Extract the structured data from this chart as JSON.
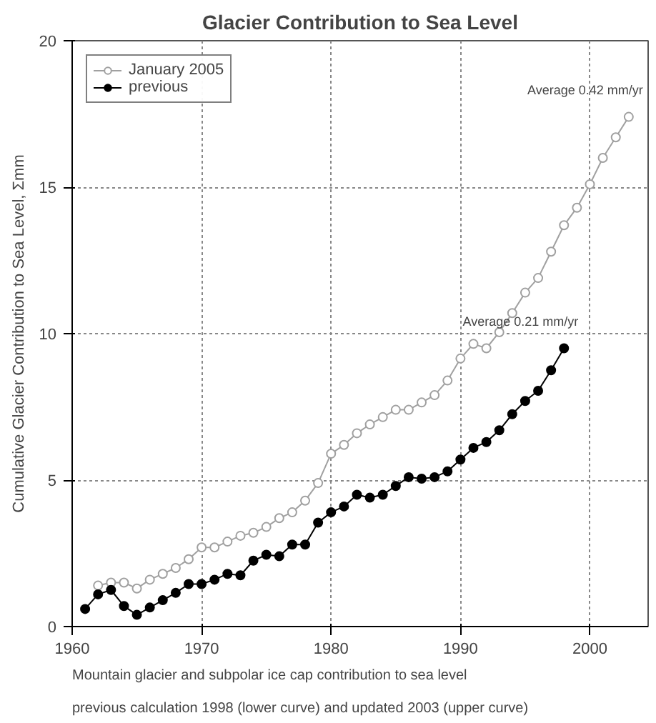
{
  "chart_data": {
    "type": "line",
    "title": "Glacier Contribution to Sea Level",
    "ylabel": "Cumulative Glacier Contribution to Sea Level, Σmm",
    "xlim": [
      1960,
      2004.5
    ],
    "ylim": [
      0,
      20
    ],
    "xticks": [
      1960,
      1970,
      1980,
      1990,
      2000
    ],
    "yticks": [
      0,
      5,
      10,
      15,
      20
    ],
    "grid": true,
    "legend": "top left",
    "line_style": "solid",
    "series": [
      {
        "name": "January 2005",
        "color": "#a0a0a0",
        "marker": "circle_open",
        "x": [
          1962,
          1963,
          1964,
          1965,
          1966,
          1967,
          1968,
          1969,
          1970,
          1971,
          1972,
          1973,
          1974,
          1975,
          1976,
          1977,
          1978,
          1979,
          1980,
          1981,
          1982,
          1983,
          1984,
          1985,
          1986,
          1987,
          1988,
          1989,
          1990,
          1991,
          1992,
          1993,
          1994,
          1995,
          1996,
          1997,
          1998,
          1999,
          2000,
          2001,
          2002,
          2003
        ],
        "values": [
          1.4,
          1.5,
          1.5,
          1.3,
          1.6,
          1.8,
          2.0,
          2.3,
          2.7,
          2.7,
          2.9,
          3.1,
          3.2,
          3.4,
          3.7,
          3.9,
          4.3,
          4.9,
          5.9,
          6.2,
          6.6,
          6.9,
          7.15,
          7.4,
          7.4,
          7.65,
          7.9,
          8.4,
          9.15,
          9.65,
          9.5,
          10.05,
          10.7,
          11.4,
          11.9,
          12.8,
          13.7,
          14.3,
          15.1,
          16.0,
          16.7,
          17.4
        ]
      },
      {
        "name": "previous",
        "color": "#000000",
        "marker": "circle",
        "x": [
          1961,
          1962,
          1963,
          1964,
          1965,
          1966,
          1967,
          1968,
          1969,
          1970,
          1971,
          1972,
          1973,
          1974,
          1975,
          1976,
          1977,
          1978,
          1979,
          1980,
          1981,
          1982,
          1983,
          1984,
          1985,
          1986,
          1987,
          1988,
          1989,
          1990,
          1991,
          1992,
          1993,
          1994,
          1995,
          1996,
          1997,
          1998
        ],
        "values": [
          0.6,
          1.1,
          1.25,
          0.7,
          0.4,
          0.65,
          0.9,
          1.15,
          1.45,
          1.45,
          1.6,
          1.8,
          1.75,
          2.25,
          2.45,
          2.4,
          2.8,
          2.8,
          3.55,
          3.9,
          4.1,
          4.5,
          4.4,
          4.5,
          4.8,
          5.1,
          5.05,
          5.1,
          5.3,
          5.7,
          6.1,
          6.3,
          6.7,
          7.25,
          7.7,
          8.05,
          8.75,
          9.5
        ]
      }
    ],
    "annotations": [
      "Average 0.42 mm/yr",
      "Average 0.21 mm/yr",
      "Mountain glacier and subpolar ice cap contribution to sea level\nprevious calculation 1998 (lower curve) and updated 2003 (upper curve)"
    ]
  }
}
